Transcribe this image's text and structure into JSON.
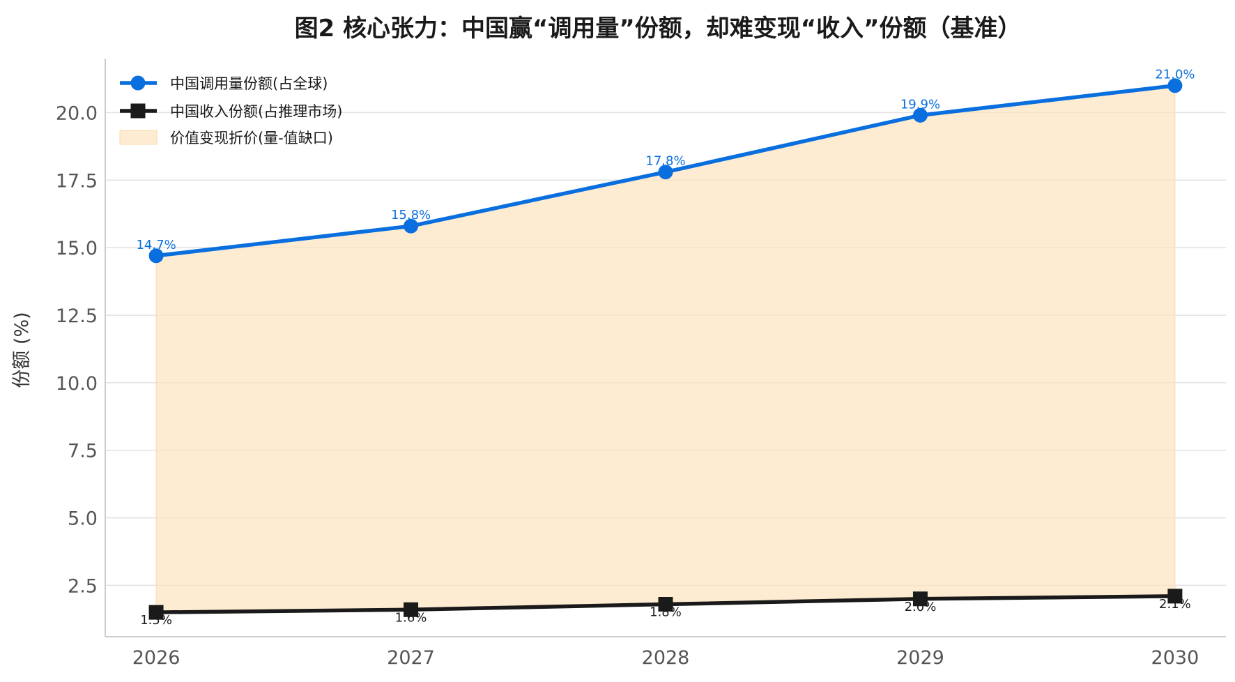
{
  "chart_data": {
    "type": "line",
    "title": "图2 核心张力：中国赢“调用量”份额，却难变现“收入”份额（基准）",
    "xlabel": "",
    "ylabel": "份额 (%)",
    "x": [
      2026,
      2027,
      2028,
      2029,
      2030
    ],
    "x_tick_labels": [
      "2026",
      "2027",
      "2028",
      "2029",
      "2030"
    ],
    "yticks": [
      2.5,
      5.0,
      7.5,
      10.0,
      12.5,
      15.0,
      17.5,
      20.0
    ],
    "y_tick_labels": [
      "2.5",
      "5.0",
      "7.5",
      "10.0",
      "12.5",
      "15.0",
      "17.5",
      "20.0"
    ],
    "ylim": [
      0.6,
      22.0
    ],
    "xlim": [
      2025.8,
      2030.2
    ],
    "grid": "horizontal",
    "legend_position": "top-left",
    "series": [
      {
        "name": "中国调用量份额(占全球)",
        "values": [
          14.7,
          15.8,
          17.8,
          19.9,
          21.0
        ],
        "labels": [
          "14.7%",
          "15.8%",
          "17.8%",
          "19.9%",
          "21.0%"
        ],
        "color": "#0a6fde",
        "marker": "circle"
      },
      {
        "name": "中国收入份额(占推理市场)",
        "values": [
          1.5,
          1.6,
          1.8,
          2.0,
          2.1
        ],
        "labels": [
          "1.5%",
          "1.6%",
          "1.8%",
          "2.0%",
          "2.1%"
        ],
        "color": "#1a1a1a",
        "marker": "square"
      }
    ],
    "fill_between": {
      "name": "价值变现折价(量-值缺口)",
      "color": "#fde4c0"
    }
  }
}
